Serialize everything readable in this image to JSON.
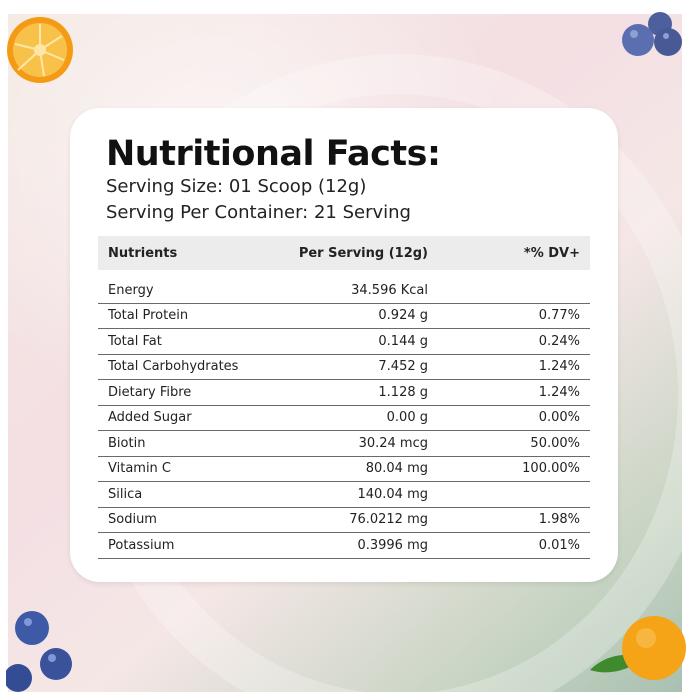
{
  "title": "Nutritional Facts:",
  "serving_size": "Serving Size: 01 Scoop (12g)",
  "serving_per_container": "Serving Per Container: 21 Serving",
  "table": {
    "headers": [
      "Nutrients",
      "Per Serving (12g)",
      "*% DV+"
    ],
    "rows": [
      [
        "Energy",
        "34.596 Kcal",
        ""
      ],
      [
        "Total Protein",
        "0.924 g",
        "0.77%"
      ],
      [
        "Total Fat",
        "0.144 g",
        "0.24%"
      ],
      [
        "Total Carbohydrates",
        "7.452 g",
        "1.24%"
      ],
      [
        "Dietary Fibre",
        "1.128 g",
        "1.24%"
      ],
      [
        "Added Sugar",
        "0.00 g",
        "0.00%"
      ],
      [
        "Biotin",
        "30.24 mcg",
        "50.00%"
      ],
      [
        "Vitamin C",
        "80.04 mg",
        "100.00%"
      ],
      [
        "Silica",
        "140.04 mg",
        ""
      ],
      [
        "Sodium",
        "76.0212 mg",
        "1.98%"
      ],
      [
        "Potassium",
        "0.3996 mg",
        "0.01%"
      ]
    ]
  },
  "decorations": [
    "orange-slice",
    "blueberries",
    "orange-with-leaf"
  ]
}
